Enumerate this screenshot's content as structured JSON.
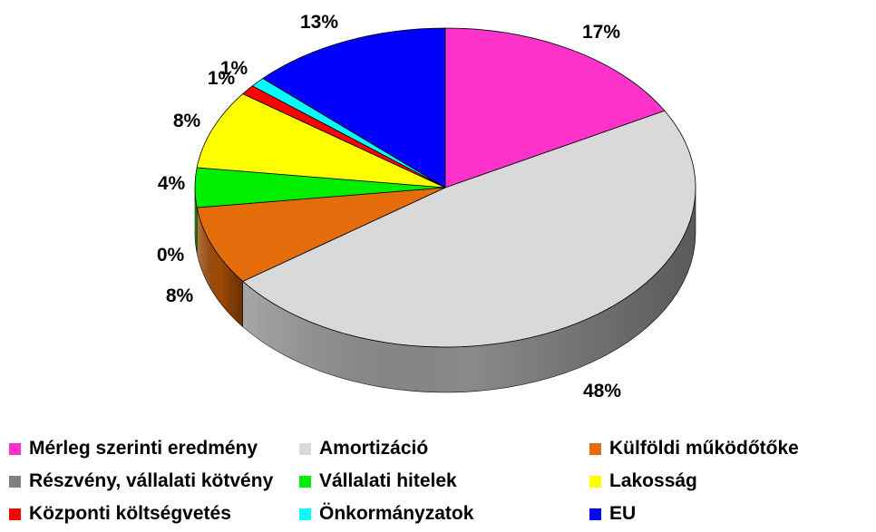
{
  "chart_data": {
    "type": "pie",
    "style": "3d",
    "categories": [
      "Mérleg szerinti eredmény",
      "Amortizáció",
      "Külföldi működőtőke",
      "Részvény, vállalati kötvény",
      "Vállalati hitelek",
      "Lakosság",
      "Központi költségvetés",
      "Önkormányzatok",
      "EU"
    ],
    "values": [
      17,
      48,
      8,
      0,
      4,
      8,
      1,
      1,
      13
    ],
    "labels": [
      "17%",
      "48%",
      "8%",
      "0%",
      "4%",
      "8%",
      "1%",
      "1%",
      "13%"
    ],
    "colors": [
      "#ff33cc",
      "#d9d9d9",
      "#e46c0a",
      "#808080",
      "#00ee00",
      "#ffff00",
      "#ff0000",
      "#00ffff",
      "#0000ff"
    ],
    "side_colors": [
      "#a02080",
      "#8a8a8a",
      "#9e4a06",
      "#505050",
      "#00a000",
      "#b0b000",
      "#a00000",
      "#00a0a0",
      "#0000a0"
    ],
    "legend_position": "bottom"
  }
}
